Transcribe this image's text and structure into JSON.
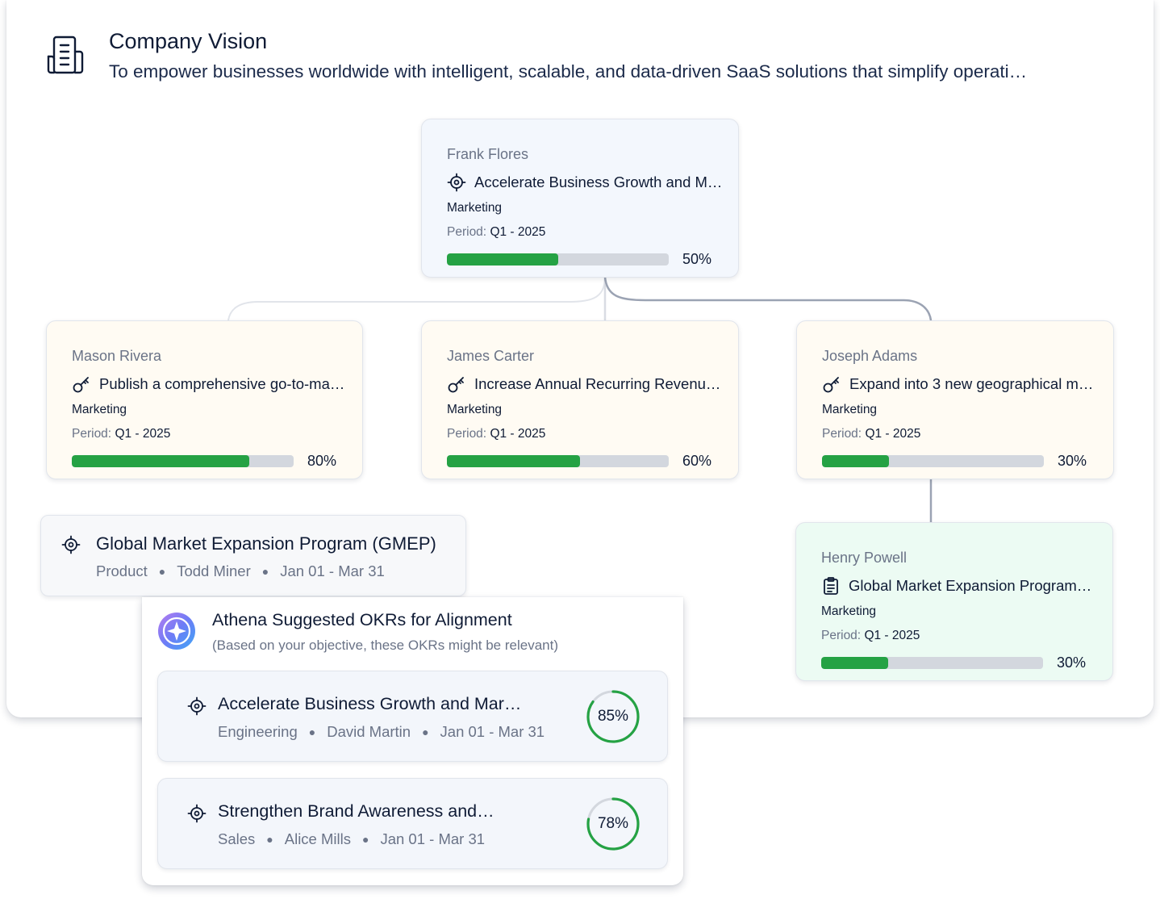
{
  "vision": {
    "title": "Company Vision",
    "text": "To empower businesses worldwide with intelligent, scalable, and data-driven SaaS solutions that simplify operati…"
  },
  "root_okr": {
    "owner": "Frank Flores",
    "title": "Accelerate Business Growth and M…",
    "department": "Marketing",
    "period_label": "Period:",
    "period_value": "Q1 - 2025",
    "progress": 0.5,
    "progress_label": "50%",
    "icon": "target-icon"
  },
  "child_okrs": [
    {
      "owner": "Mason Rivera",
      "title": "Publish a comprehensive go-to-ma…",
      "department": "Marketing",
      "period_label": "Period:",
      "period_value": "Q1 - 2025",
      "progress": 0.8,
      "progress_label": "80%",
      "icon": "key-icon"
    },
    {
      "owner": "James Carter",
      "title": "Increase Annual Recurring Revenu…",
      "department": "Marketing",
      "period_label": "Period:",
      "period_value": "Q1 - 2025",
      "progress": 0.6,
      "progress_label": "60%",
      "icon": "key-icon"
    },
    {
      "owner": "Joseph Adams",
      "title": "Expand into 3 new geographical m…",
      "department": "Marketing",
      "period_label": "Period:",
      "period_value": "Q1 - 2025",
      "progress": 0.3,
      "progress_label": "30%",
      "icon": "key-icon"
    }
  ],
  "grandchild_okr": {
    "owner": "Henry Powell",
    "title": "Global Market Expansion Program…",
    "department": "Marketing",
    "period_label": "Period:",
    "period_value": "Q1 - 2025",
    "progress": 0.3,
    "progress_label": "30%",
    "icon": "clipboard-icon"
  },
  "selected_objective": {
    "title": "Global Market Expansion Program (GMEP)",
    "department": "Product",
    "owner": "Todd Miner",
    "dates": "Jan 01 - Mar 31",
    "icon": "target-icon"
  },
  "athena": {
    "title": "Athena Suggested OKRs for Alignment",
    "subtitle": "(Based on your objective, these OKRs might be relevant)",
    "icon": "athena-compass-logo",
    "suggestions": [
      {
        "title": "Accelerate Business Growth and Mar…",
        "department": "Engineering",
        "owner": "David Martin",
        "dates": "Jan 01 - Mar 31",
        "score": 0.85,
        "score_label": "85%"
      },
      {
        "title": "Strengthen Brand Awareness and…",
        "department": "Sales",
        "owner": "Alice Mills",
        "dates": "Jan 01 - Mar 31",
        "score": 0.78,
        "score_label": "78%"
      }
    ]
  },
  "colors": {
    "progress_fill": "#25a244",
    "progress_track": "#d3d7de",
    "root_card_bg": "#f3f7fd",
    "child_card_bg": "#fffbf3",
    "grandchild_card_bg": "#ecfbf3",
    "text_primary": "#0f1b35",
    "text_muted": "#6a7387"
  }
}
